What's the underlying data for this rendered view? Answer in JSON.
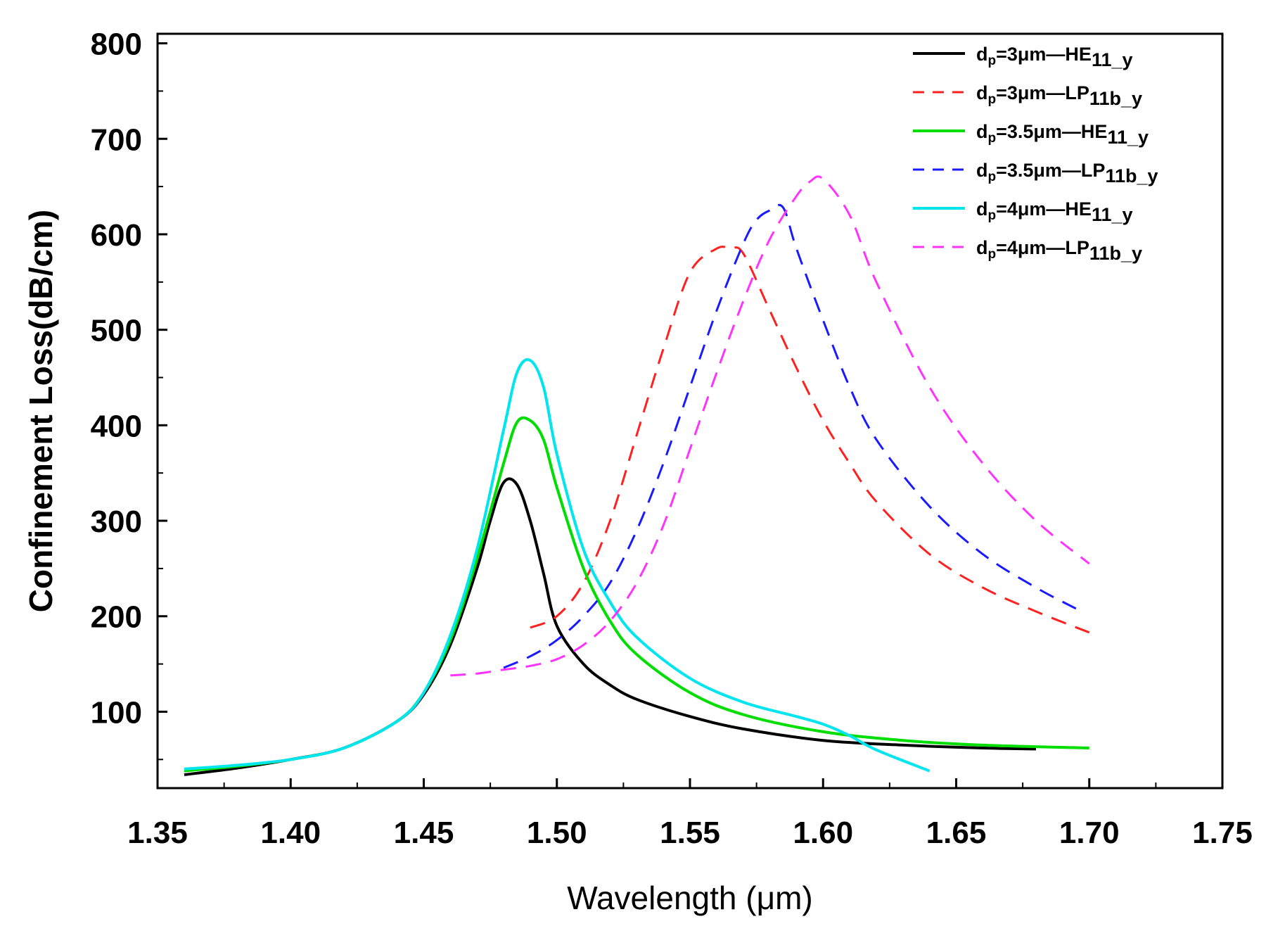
{
  "chart_data": {
    "type": "line",
    "title": "",
    "xlabel": "Wavelength (μm)",
    "ylabel": "Confinement Loss(dB/cm)",
    "xlim": [
      1.35,
      1.75
    ],
    "ylim": [
      20,
      810
    ],
    "xticks": [
      1.35,
      1.4,
      1.45,
      1.5,
      1.55,
      1.6,
      1.65,
      1.7,
      1.75
    ],
    "xtick_labels": [
      "1.35",
      "1.40",
      "1.45",
      "1.50",
      "1.55",
      "1.60",
      "1.65",
      "1.70",
      "1.75"
    ],
    "yticks": [
      100,
      200,
      300,
      400,
      500,
      600,
      700,
      800
    ],
    "ytick_labels": [
      "100",
      "200",
      "300",
      "400",
      "500",
      "600",
      "700",
      "800"
    ],
    "grid": false,
    "legend_position": "top-right",
    "series": [
      {
        "name": "dp=3μm—HE11_y",
        "legend": {
          "pre": "d",
          "pre_sub": "p",
          "mid": "=3μm—HE",
          "mid_sub": "11_y"
        },
        "color": "#000000",
        "dash": "solid",
        "x": [
          1.36,
          1.38,
          1.4,
          1.42,
          1.44,
          1.45,
          1.46,
          1.47,
          1.475,
          1.48,
          1.485,
          1.49,
          1.495,
          1.5,
          1.51,
          1.52,
          1.53,
          1.55,
          1.57,
          1.6,
          1.63,
          1.66,
          1.68
        ],
        "y": [
          34,
          41,
          50,
          62,
          90,
          118,
          170,
          250,
          300,
          340,
          338,
          300,
          245,
          190,
          150,
          128,
          113,
          95,
          82,
          70,
          65,
          62,
          61
        ]
      },
      {
        "name": "dp=3μm—LP11b_y",
        "legend": {
          "pre": "d",
          "pre_sub": "p",
          "mid": "=3μm—LP",
          "mid_sub": "11b_y"
        },
        "color": "#ff2020",
        "dash": "dashed",
        "x": [
          1.49,
          1.5,
          1.51,
          1.52,
          1.53,
          1.54,
          1.55,
          1.56,
          1.565,
          1.57,
          1.58,
          1.59,
          1.6,
          1.61,
          1.62,
          1.64,
          1.66,
          1.68,
          1.7
        ],
        "y": [
          188,
          200,
          235,
          300,
          390,
          480,
          560,
          585,
          585,
          580,
          520,
          460,
          405,
          360,
          320,
          265,
          230,
          205,
          183
        ]
      },
      {
        "name": "dp=3.5μm—HE11_y",
        "legend": {
          "pre": "d",
          "pre_sub": "p",
          "mid": "=3.5μm—HE",
          "mid_sub": "11_y"
        },
        "color": "#00dd00",
        "dash": "solid",
        "x": [
          1.36,
          1.38,
          1.4,
          1.42,
          1.44,
          1.45,
          1.46,
          1.47,
          1.48,
          1.485,
          1.49,
          1.495,
          1.5,
          1.51,
          1.52,
          1.53,
          1.55,
          1.57,
          1.6,
          1.63,
          1.66,
          1.7
        ],
        "y": [
          38,
          43,
          50,
          62,
          90,
          120,
          175,
          260,
          360,
          403,
          405,
          385,
          335,
          250,
          195,
          160,
          120,
          97,
          79,
          70,
          65,
          62
        ]
      },
      {
        "name": "dp=3.5μm—LP11b_y",
        "legend": {
          "pre": "d",
          "pre_sub": "p",
          "mid": "=3.5μm—LP",
          "mid_sub": "11b_y"
        },
        "color": "#1a1aff",
        "dash": "dashed",
        "x": [
          1.48,
          1.49,
          1.5,
          1.51,
          1.52,
          1.53,
          1.54,
          1.55,
          1.56,
          1.57,
          1.575,
          1.58,
          1.585,
          1.59,
          1.6,
          1.61,
          1.62,
          1.64,
          1.66,
          1.68,
          1.695
        ],
        "y": [
          146,
          158,
          175,
          200,
          235,
          290,
          360,
          440,
          520,
          590,
          615,
          625,
          628,
          585,
          510,
          440,
          385,
          315,
          265,
          230,
          208
        ]
      },
      {
        "name": "dp=4μm—HE11_y",
        "legend": {
          "pre": "d",
          "pre_sub": "p",
          "mid": "=4μm—HE",
          "mid_sub": "11_y"
        },
        "color": "#00e5ee",
        "dash": "solid",
        "x": [
          1.36,
          1.38,
          1.4,
          1.42,
          1.44,
          1.45,
          1.46,
          1.47,
          1.48,
          1.485,
          1.49,
          1.495,
          1.5,
          1.51,
          1.52,
          1.53,
          1.55,
          1.57,
          1.59,
          1.6,
          1.61,
          1.62,
          1.64
        ],
        "y": [
          40,
          44,
          50,
          62,
          90,
          120,
          180,
          270,
          395,
          455,
          468,
          440,
          370,
          270,
          215,
          178,
          135,
          110,
          95,
          87,
          75,
          60,
          38
        ]
      },
      {
        "name": "dp=4μm—LP11b_y",
        "legend": {
          "pre": "d",
          "pre_sub": "p",
          "mid": "=4μm—LP",
          "mid_sub": "11b_y"
        },
        "color": "#ff33ff",
        "dash": "dashed",
        "x": [
          1.46,
          1.47,
          1.48,
          1.49,
          1.5,
          1.51,
          1.52,
          1.53,
          1.54,
          1.55,
          1.56,
          1.57,
          1.58,
          1.59,
          1.595,
          1.6,
          1.61,
          1.62,
          1.64,
          1.66,
          1.68,
          1.7
        ],
        "y": [
          138,
          140,
          144,
          148,
          155,
          170,
          195,
          235,
          295,
          375,
          455,
          530,
          595,
          640,
          655,
          658,
          620,
          550,
          440,
          360,
          300,
          255
        ]
      }
    ]
  }
}
